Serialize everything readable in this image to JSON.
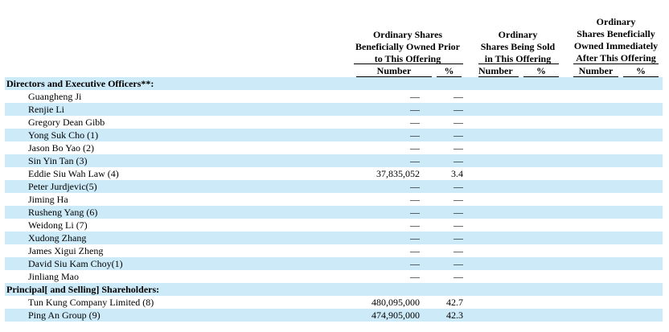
{
  "headers": {
    "prior": {
      "lines": [
        "Ordinary Shares",
        "Beneficially Owned Prior",
        "to This Offering"
      ],
      "number": "Number",
      "percent": "%"
    },
    "sold": {
      "lines": [
        "Ordinary",
        "Shares Being Sold",
        "in This Offering"
      ],
      "number": "Number",
      "percent": "%"
    },
    "after": {
      "lines": [
        "Ordinary",
        "Shares Beneficially",
        "Owned Immediately",
        "After This Offering"
      ],
      "number": "Number",
      "percent": "%"
    }
  },
  "rows": [
    {
      "type": "section",
      "name": "Directors and Executive Officers**:",
      "number": "",
      "percent": ""
    },
    {
      "type": "person",
      "name": "Guangheng Ji",
      "number": "—",
      "percent": "—"
    },
    {
      "type": "person",
      "name": "Renjie Li",
      "number": "—",
      "percent": "—"
    },
    {
      "type": "person",
      "name": "Gregory Dean Gibb",
      "number": "—",
      "percent": "—"
    },
    {
      "type": "person",
      "name": "Yong Suk Cho (1)",
      "number": "—",
      "percent": "—"
    },
    {
      "type": "person",
      "name": "Jason Bo Yao (2)",
      "number": "—",
      "percent": "—"
    },
    {
      "type": "person",
      "name": "Sin Yin Tan (3)",
      "number": "—",
      "percent": "—"
    },
    {
      "type": "person",
      "name": "Eddie Siu Wah Law (4)",
      "number": "37,835,052",
      "percent": "3.4"
    },
    {
      "type": "person",
      "name": "Peter Jurdjevic(5)",
      "number": "—",
      "percent": "—"
    },
    {
      "type": "person",
      "name": "Jiming Ha",
      "number": "—",
      "percent": "—"
    },
    {
      "type": "person",
      "name": "Rusheng Yang (6)",
      "number": "—",
      "percent": "—"
    },
    {
      "type": "person",
      "name": "Weidong Li (7)",
      "number": "—",
      "percent": "—"
    },
    {
      "type": "person",
      "name": "Xudong Zhang",
      "number": "—",
      "percent": "—"
    },
    {
      "type": "person",
      "name": "James Xigui Zheng",
      "number": "—",
      "percent": "—"
    },
    {
      "type": "person",
      "name": "David Siu Kam Choy(1)",
      "number": "—",
      "percent": "—"
    },
    {
      "type": "person",
      "name": "Jinliang Mao",
      "number": "—",
      "percent": "—"
    },
    {
      "type": "section",
      "name": "Principal[ and Selling] Shareholders:",
      "number": "",
      "percent": ""
    },
    {
      "type": "person",
      "name": "Tun Kung Company Limited (8)",
      "number": "480,095,000",
      "percent": "42.7"
    },
    {
      "type": "person",
      "name": "Ping An Group (9)",
      "number": "474,905,000",
      "percent": "42.3"
    }
  ]
}
